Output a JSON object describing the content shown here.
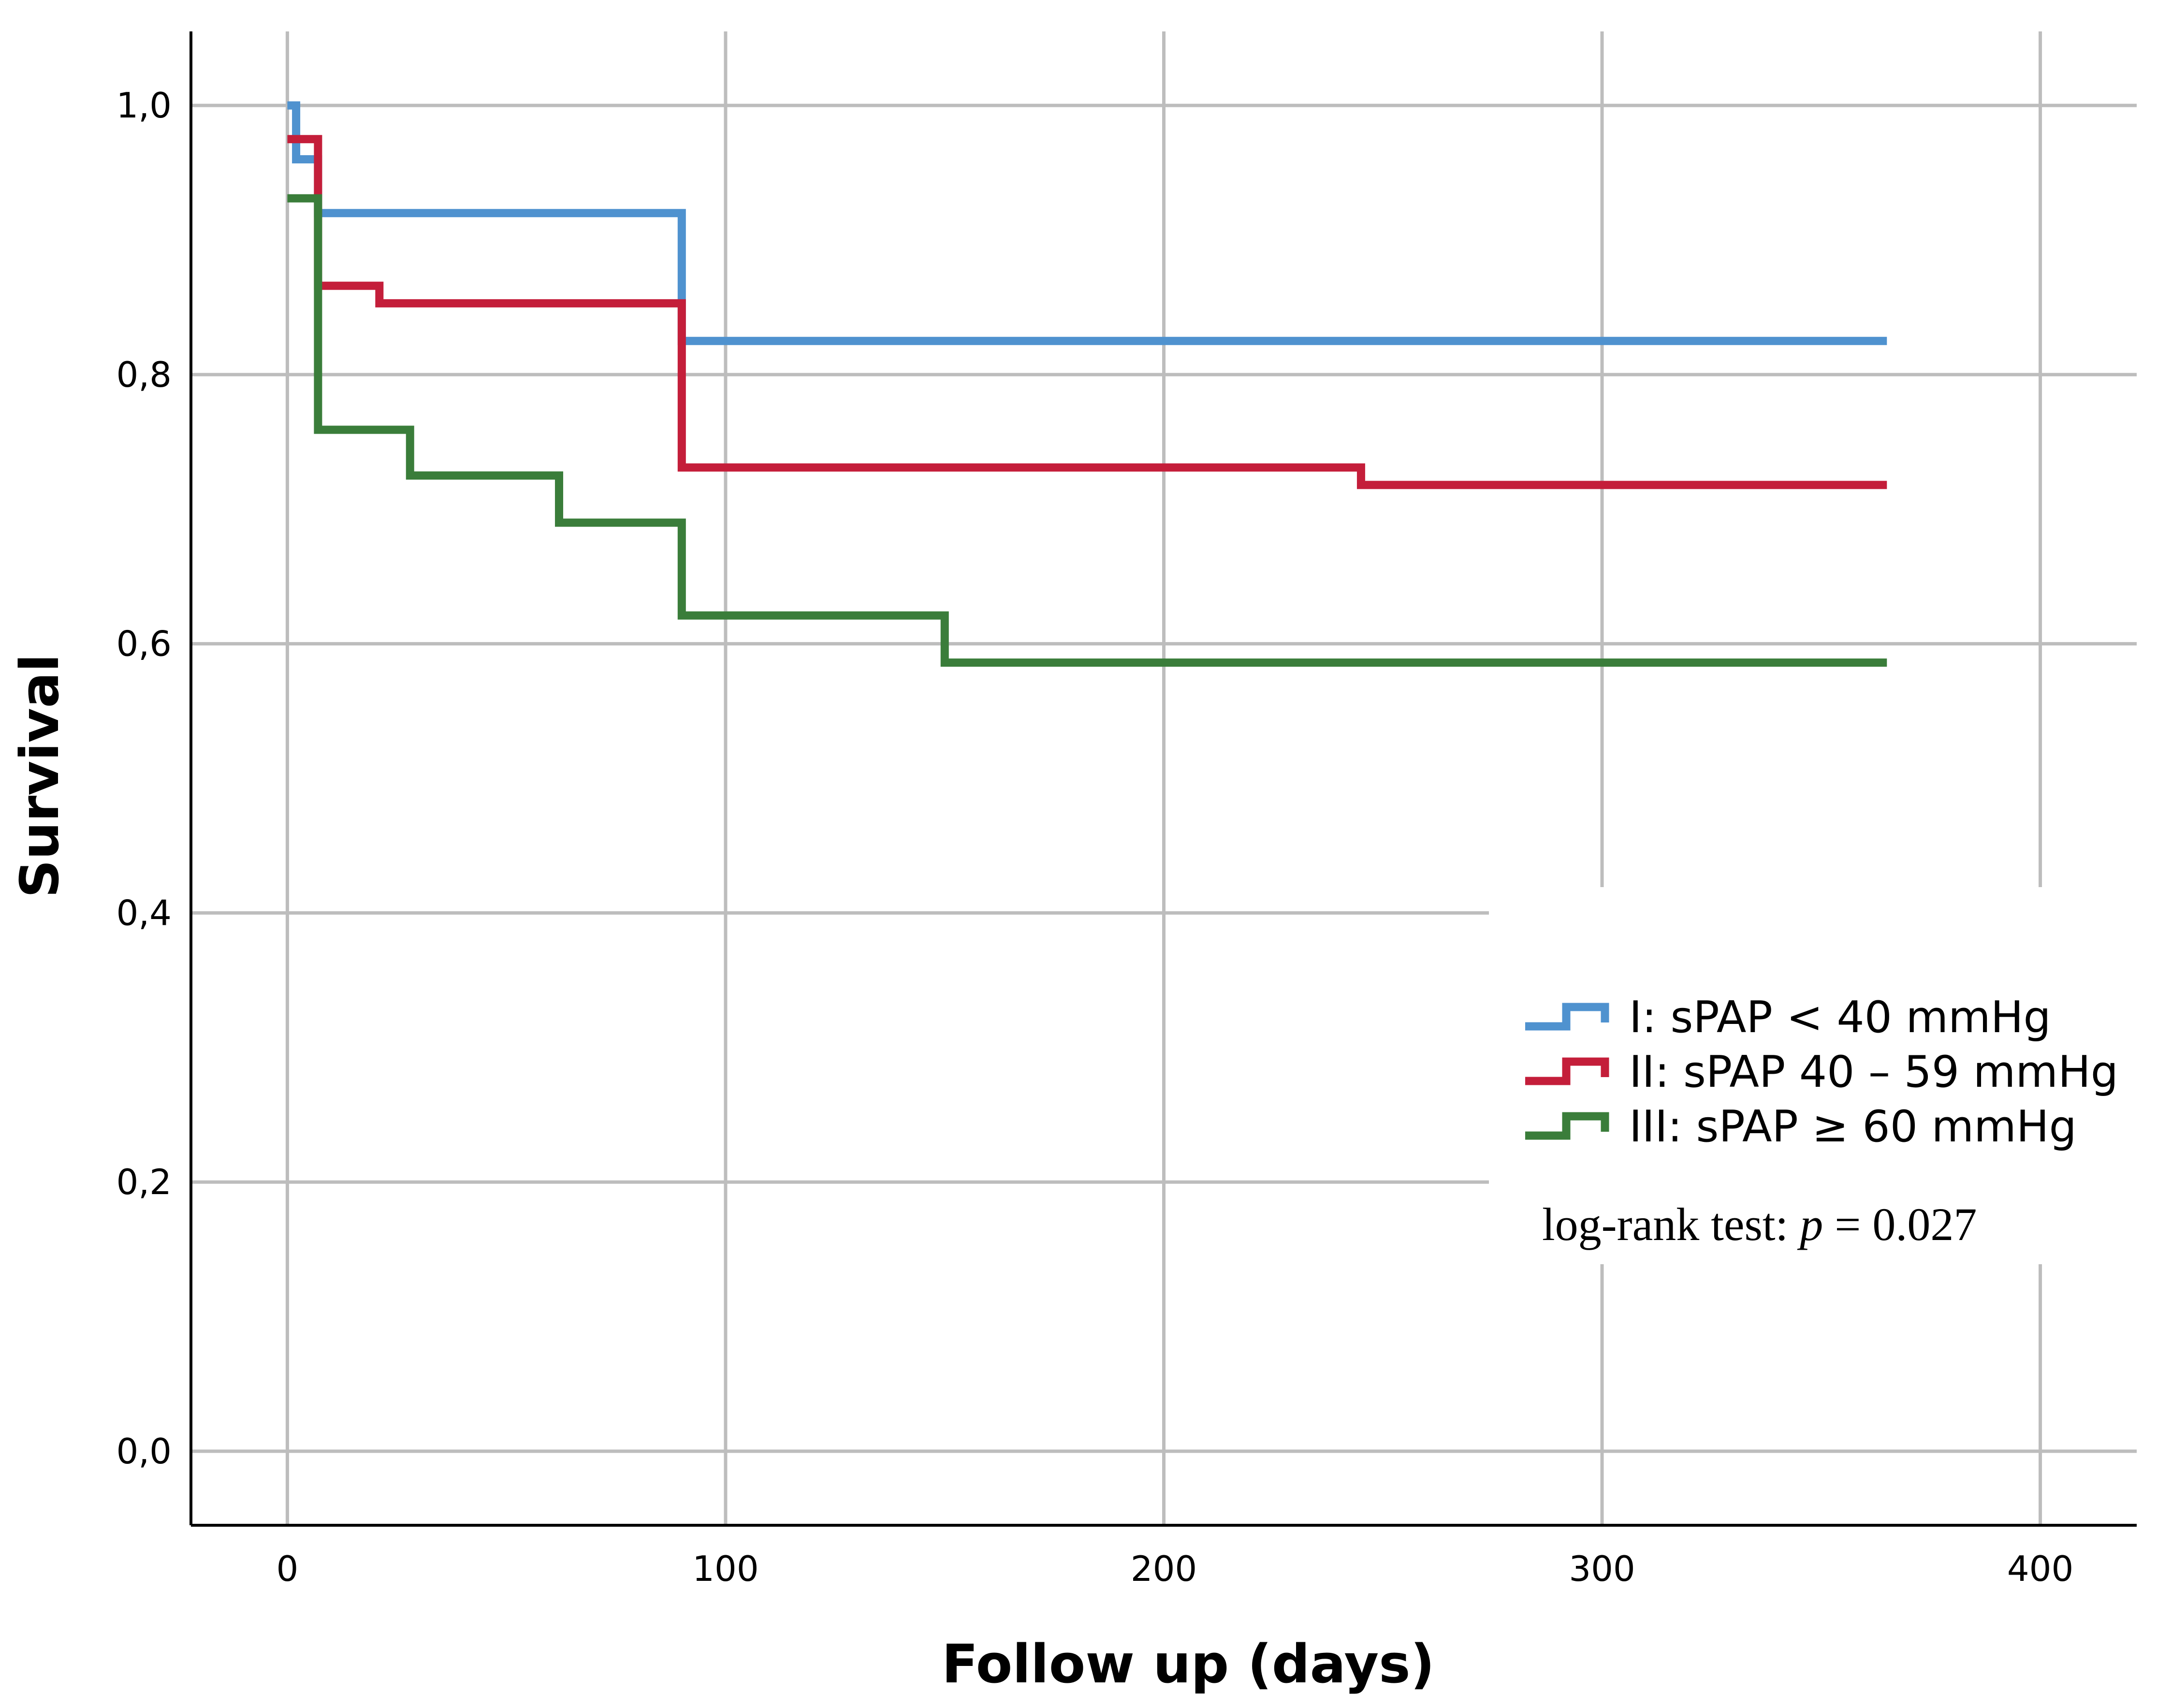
{
  "chart_data": {
    "type": "line",
    "title": "",
    "xlabel": "Follow up (days)",
    "ylabel": "Survival",
    "xlim": [
      -22,
      422
    ],
    "ylim": [
      -0.055,
      1.055
    ],
    "xticks": [
      0,
      100,
      200,
      300,
      400
    ],
    "xtick_labels": [
      "0",
      "100",
      "200",
      "300",
      "400"
    ],
    "yticks": [
      0.0,
      0.2,
      0.4,
      0.6,
      0.8,
      1.0
    ],
    "ytick_labels": [
      "0,0",
      "0,2",
      "0,4",
      "0,6",
      "0,8",
      "1,0"
    ],
    "grid": true,
    "legend_position": "lower-right",
    "series": [
      {
        "name": "I: sPAP < 40 mmHg",
        "color": "#4f92cf",
        "step": true,
        "x": [
          0,
          2,
          7,
          90,
          365
        ],
        "y": [
          1.0,
          0.96,
          0.92,
          0.825,
          0.825
        ]
      },
      {
        "name": "II: sPAP 40 – 59 mmHg",
        "color": "#c41e3a",
        "step": true,
        "x": [
          0,
          7,
          21,
          90,
          245,
          365
        ],
        "y": [
          0.975,
          0.866,
          0.853,
          0.731,
          0.718,
          0.718
        ]
      },
      {
        "name": "III: sPAP ≥ 60 mmHg",
        "color": "#3a7d3a",
        "step": true,
        "x": [
          0,
          7,
          28,
          62,
          90,
          150,
          365
        ],
        "y": [
          0.931,
          0.759,
          0.725,
          0.69,
          0.621,
          0.586,
          0.586
        ]
      }
    ],
    "annotation": {
      "prefix": "log-rank test: ",
      "p_symbol": "p",
      "suffix": " = 0.027"
    }
  }
}
